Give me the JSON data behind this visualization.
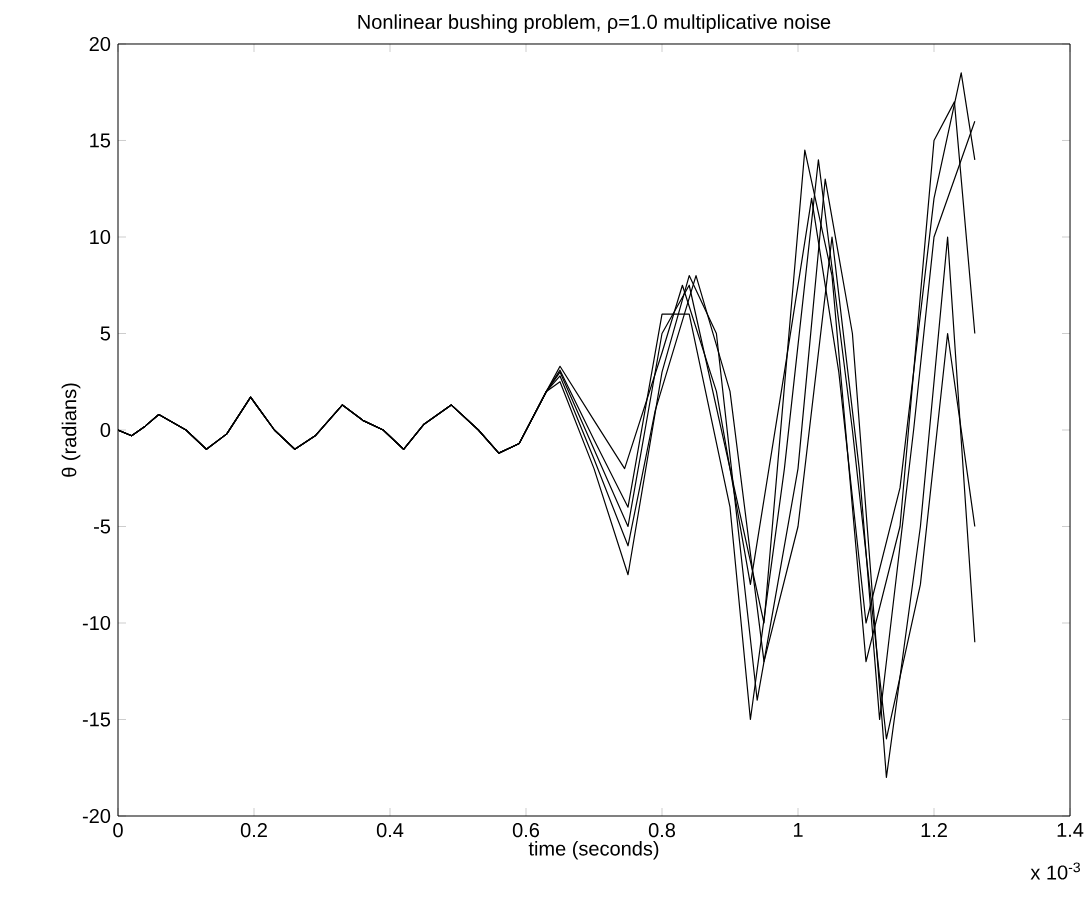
{
  "chart_data": {
    "type": "line",
    "title": "Nonlinear bushing problem, ρ=1.0 multiplicative noise",
    "xlabel": "time (seconds)",
    "ylabel": "θ (radians)",
    "annotations": [
      "x 10$^{-3}$"
    ],
    "xlim": [
      0,
      1.4
    ],
    "ylim": [
      -20,
      20
    ],
    "xticks": [
      0,
      0.2,
      0.4,
      0.6,
      0.8,
      1,
      1.2,
      1.4
    ],
    "yticks": [
      -20,
      -15,
      -10,
      -5,
      0,
      5,
      10,
      15,
      20
    ],
    "marker": "none",
    "line_style": "solid",
    "series": [
      {
        "color": "#000000",
        "x": [
          0,
          0.02,
          0.04,
          0.06,
          0.08,
          0.1,
          0.13,
          0.16,
          0.195,
          0.23,
          0.26,
          0.29,
          0.33,
          0.36,
          0.39,
          0.42,
          0.45,
          0.49,
          0.53,
          0.56,
          0.59,
          0.63,
          0.65,
          0.7,
          0.745,
          0.8,
          0.83,
          0.88,
          0.93,
          0.98,
          1.02,
          1.06,
          1.1,
          1.15,
          1.2,
          1.24,
          1.26
        ],
        "values": [
          0,
          -0.3,
          0.2,
          0.8,
          0.4,
          0,
          -1,
          -0.2,
          1.7,
          0,
          -1,
          -0.3,
          1.3,
          0.5,
          0,
          -1,
          0.3,
          1.3,
          0,
          -1.2,
          -0.7,
          2,
          3.3,
          0.5,
          -2,
          4,
          7.5,
          2,
          -8,
          3,
          12,
          3,
          -10,
          -3,
          12,
          18.5,
          14
        ]
      },
      {
        "color": "#000000",
        "x": [
          0,
          0.02,
          0.04,
          0.06,
          0.08,
          0.1,
          0.13,
          0.16,
          0.195,
          0.23,
          0.26,
          0.29,
          0.33,
          0.36,
          0.39,
          0.42,
          0.45,
          0.49,
          0.53,
          0.56,
          0.59,
          0.63,
          0.65,
          0.7,
          0.75,
          0.8,
          0.84,
          0.88,
          0.94,
          1,
          1.04,
          1.08,
          1.13,
          1.18,
          1.22,
          1.26
        ],
        "values": [
          0,
          -0.3,
          0.2,
          0.8,
          0.4,
          0,
          -1,
          -0.2,
          1.7,
          0,
          -1,
          -0.3,
          1.3,
          0.5,
          0,
          -1,
          0.3,
          1.3,
          0,
          -1.2,
          -0.7,
          2,
          2.5,
          -2,
          -7.5,
          3,
          8,
          5,
          -14,
          -2,
          13,
          5,
          -18,
          -5,
          10,
          -11
        ]
      },
      {
        "color": "#000000",
        "x": [
          0,
          0.02,
          0.04,
          0.06,
          0.08,
          0.1,
          0.13,
          0.16,
          0.195,
          0.23,
          0.26,
          0.29,
          0.33,
          0.36,
          0.39,
          0.42,
          0.45,
          0.49,
          0.53,
          0.56,
          0.59,
          0.63,
          0.65,
          0.7,
          0.75,
          0.8,
          0.84,
          0.9,
          0.95,
          1.01,
          1.05,
          1.1,
          1.15,
          1.2,
          1.23,
          1.26
        ],
        "values": [
          0,
          -0.3,
          0.2,
          0.8,
          0.4,
          0,
          -1,
          -0.2,
          1.7,
          0,
          -1,
          -0.3,
          1.3,
          0.5,
          0,
          -1,
          0.3,
          1.3,
          0,
          -1.2,
          -0.7,
          2,
          3,
          -1,
          -5,
          5,
          7.5,
          -2,
          -10,
          14.5,
          8,
          -12,
          -5,
          15,
          17,
          5
        ]
      },
      {
        "color": "#000000",
        "x": [
          0,
          0.02,
          0.04,
          0.06,
          0.08,
          0.1,
          0.13,
          0.16,
          0.195,
          0.23,
          0.26,
          0.29,
          0.33,
          0.36,
          0.39,
          0.42,
          0.45,
          0.49,
          0.53,
          0.56,
          0.59,
          0.63,
          0.65,
          0.7,
          0.75,
          0.79,
          0.85,
          0.9,
          0.95,
          1,
          1.05,
          1.09,
          1.12,
          1.17,
          1.2,
          1.26
        ],
        "values": [
          0,
          -0.3,
          0.2,
          0.8,
          0.4,
          0,
          -1,
          -0.2,
          1.7,
          0,
          -1,
          -0.3,
          1.3,
          0.5,
          0,
          -1,
          0.3,
          1.3,
          0,
          -1.2,
          -0.7,
          2,
          2.8,
          -1.5,
          -6,
          1,
          8,
          2,
          -12,
          -5,
          10,
          -2,
          -15,
          0,
          10,
          16
        ]
      },
      {
        "color": "#000000",
        "x": [
          0,
          0.02,
          0.04,
          0.06,
          0.08,
          0.1,
          0.13,
          0.16,
          0.195,
          0.23,
          0.26,
          0.29,
          0.33,
          0.36,
          0.39,
          0.42,
          0.45,
          0.49,
          0.53,
          0.56,
          0.59,
          0.63,
          0.65,
          0.7,
          0.75,
          0.8,
          0.84,
          0.9,
          0.93,
          0.98,
          1.03,
          1.08,
          1.13,
          1.18,
          1.22,
          1.26
        ],
        "values": [
          0,
          -0.3,
          0.2,
          0.8,
          0.4,
          0,
          -1,
          -0.2,
          1.7,
          0,
          -1,
          -0.3,
          1.3,
          0.5,
          0,
          -1,
          0.3,
          1.3,
          0,
          -1.2,
          -0.7,
          2,
          3.1,
          -0.5,
          -4,
          6,
          6,
          -4,
          -15,
          -2,
          14,
          0,
          -16,
          -8,
          5,
          -5
        ]
      }
    ]
  }
}
